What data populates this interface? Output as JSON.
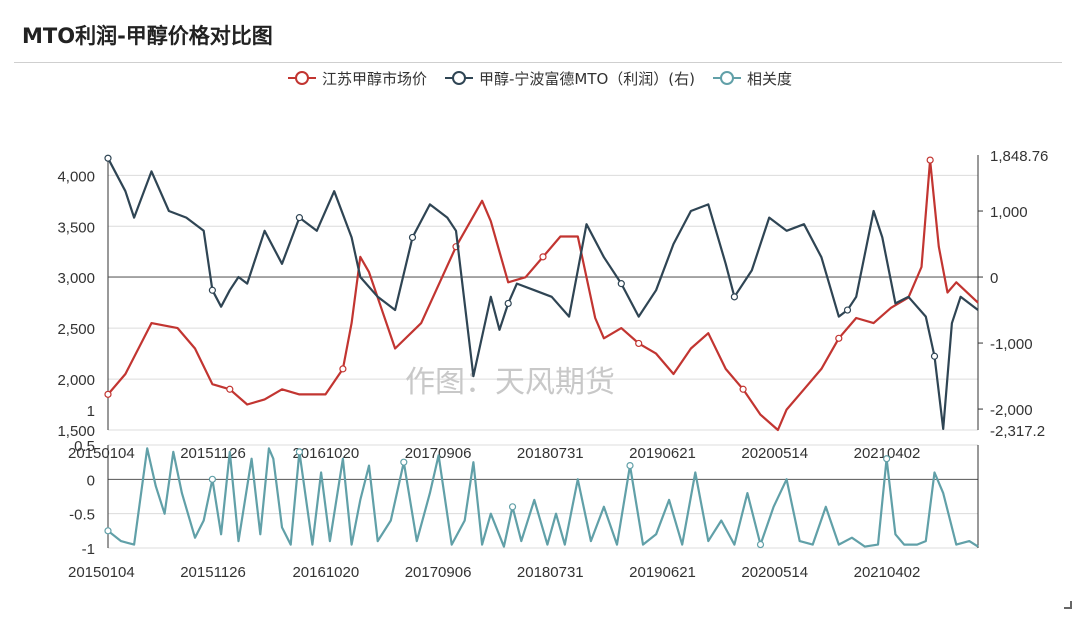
{
  "title": "MTO利润-甲醇价格对比图",
  "watermark": "作图：天风期货",
  "legend": [
    {
      "label": "江苏甲醇市场价",
      "color": "#c23531"
    },
    {
      "label": "甲醇-宁波富德MTO（利润）(右)",
      "color": "#2f4554"
    },
    {
      "label": "相关度",
      "color": "#61a0a8"
    }
  ],
  "chart_data": [
    {
      "type": "line",
      "x_ticks": [
        "20150104",
        "20151126",
        "20161020",
        "20170906",
        "20180731",
        "20190621",
        "20200514",
        "20210402"
      ],
      "y_left": {
        "ticks": [
          "1,500",
          "2,000",
          "2,500",
          "3,000",
          "3,500",
          "4,000"
        ],
        "extra_tick": "1",
        "range": [
          1500,
          4200
        ]
      },
      "y_right": {
        "ticks": [
          "-2,000",
          "-1,000",
          "0",
          "1,000"
        ],
        "max_label": "1,848.76",
        "min_label": "-2,317.2",
        "range": [
          -2317.2,
          1848.76
        ]
      },
      "series": [
        {
          "name": "江苏甲醇市场价",
          "axis": "left",
          "color": "#c23531",
          "t": [
            0,
            0.02,
            0.05,
            0.08,
            0.1,
            0.12,
            0.14,
            0.16,
            0.18,
            0.2,
            0.22,
            0.25,
            0.27,
            0.28,
            0.29,
            0.3,
            0.33,
            0.36,
            0.4,
            0.43,
            0.44,
            0.45,
            0.46,
            0.48,
            0.5,
            0.52,
            0.54,
            0.56,
            0.57,
            0.59,
            0.61,
            0.63,
            0.65,
            0.67,
            0.69,
            0.71,
            0.73,
            0.75,
            0.77,
            0.78,
            0.8,
            0.82,
            0.84,
            0.86,
            0.88,
            0.9,
            0.92,
            0.935,
            0.945,
            0.955,
            0.965,
            0.975,
            1.0
          ],
          "y": [
            1850,
            2050,
            2550,
            2500,
            2300,
            1950,
            1900,
            1750,
            1800,
            1900,
            1850,
            1850,
            2100,
            2550,
            3200,
            3050,
            2300,
            2550,
            3300,
            3750,
            3550,
            3250,
            2950,
            3000,
            3200,
            3400,
            3400,
            2600,
            2400,
            2500,
            2350,
            2250,
            2050,
            2300,
            2450,
            2100,
            1900,
            1650,
            1500,
            1700,
            1900,
            2100,
            2400,
            2600,
            2550,
            2700,
            2800,
            3100,
            4150,
            3300,
            2850,
            2950,
            2750
          ]
        },
        {
          "name": "甲醇-宁波富德MTO（利润）(右)",
          "axis": "right",
          "color": "#2f4554",
          "t": [
            0,
            0.02,
            0.03,
            0.05,
            0.07,
            0.09,
            0.11,
            0.12,
            0.13,
            0.14,
            0.15,
            0.16,
            0.18,
            0.2,
            0.22,
            0.24,
            0.26,
            0.28,
            0.29,
            0.31,
            0.33,
            0.35,
            0.37,
            0.39,
            0.4,
            0.42,
            0.44,
            0.45,
            0.46,
            0.47,
            0.49,
            0.51,
            0.53,
            0.55,
            0.57,
            0.59,
            0.61,
            0.63,
            0.65,
            0.67,
            0.69,
            0.71,
            0.72,
            0.74,
            0.76,
            0.78,
            0.8,
            0.82,
            0.84,
            0.85,
            0.86,
            0.88,
            0.89,
            0.905,
            0.92,
            0.94,
            0.95,
            0.96,
            0.97,
            0.98,
            1.0
          ],
          "y": [
            1800,
            1300,
            900,
            1600,
            1000,
            900,
            700,
            -200,
            -450,
            -200,
            0,
            -100,
            700,
            200,
            900,
            700,
            1300,
            600,
            0,
            -300,
            -500,
            600,
            1100,
            900,
            700,
            -1500,
            -300,
            -800,
            -400,
            -100,
            -200,
            -300,
            -600,
            800,
            300,
            -100,
            -600,
            -200,
            500,
            1000,
            1100,
            200,
            -300,
            100,
            900,
            700,
            800,
            300,
            -600,
            -500,
            -300,
            1000,
            600,
            -400,
            -300,
            -600,
            -1200,
            -2300,
            -700,
            -300,
            -500
          ]
        }
      ]
    },
    {
      "type": "line",
      "x_ticks": [
        "20150104",
        "20151126",
        "20161020",
        "20170906",
        "20180731",
        "20190621",
        "20200514",
        "20210402"
      ],
      "y_ticks": [
        "-1",
        "-0.5",
        "0",
        "0.5"
      ],
      "range": [
        -1,
        0.5
      ],
      "series": [
        {
          "name": "相关度",
          "color": "#61a0a8",
          "t": [
            0,
            0.015,
            0.03,
            0.045,
            0.055,
            0.065,
            0.075,
            0.085,
            0.1,
            0.11,
            0.12,
            0.13,
            0.14,
            0.15,
            0.165,
            0.175,
            0.185,
            0.19,
            0.2,
            0.21,
            0.22,
            0.235,
            0.245,
            0.255,
            0.27,
            0.28,
            0.29,
            0.3,
            0.31,
            0.325,
            0.34,
            0.355,
            0.37,
            0.38,
            0.395,
            0.41,
            0.42,
            0.43,
            0.44,
            0.455,
            0.465,
            0.475,
            0.49,
            0.505,
            0.515,
            0.525,
            0.54,
            0.555,
            0.57,
            0.585,
            0.6,
            0.615,
            0.63,
            0.645,
            0.66,
            0.675,
            0.69,
            0.705,
            0.72,
            0.735,
            0.75,
            0.765,
            0.78,
            0.795,
            0.81,
            0.825,
            0.84,
            0.855,
            0.87,
            0.885,
            0.895,
            0.905,
            0.915,
            0.93,
            0.94,
            0.95,
            0.96,
            0.975,
            0.99,
            1.0
          ],
          "y": [
            -0.75,
            -0.9,
            -0.95,
            0.45,
            -0.1,
            -0.5,
            0.4,
            -0.2,
            -0.85,
            -0.6,
            0.0,
            -0.8,
            0.4,
            -0.9,
            0.3,
            -0.8,
            0.45,
            0.3,
            -0.7,
            -0.95,
            0.4,
            -0.95,
            0.1,
            -0.9,
            0.3,
            -0.95,
            -0.3,
            0.2,
            -0.9,
            -0.6,
            0.25,
            -0.9,
            -0.2,
            0.35,
            -0.95,
            -0.6,
            0.25,
            -0.95,
            -0.5,
            -0.98,
            -0.4,
            -0.9,
            -0.3,
            -0.95,
            -0.5,
            -0.95,
            0.0,
            -0.9,
            -0.4,
            -0.95,
            0.2,
            -0.95,
            -0.8,
            -0.3,
            -0.95,
            0.1,
            -0.9,
            -0.6,
            -0.95,
            -0.2,
            -0.95,
            -0.4,
            0.0,
            -0.9,
            -0.95,
            -0.4,
            -0.95,
            -0.85,
            -0.98,
            -0.95,
            0.3,
            -0.8,
            -0.95,
            -0.95,
            -0.9,
            0.1,
            -0.2,
            -0.95,
            -0.9,
            -0.98
          ]
        }
      ]
    }
  ]
}
